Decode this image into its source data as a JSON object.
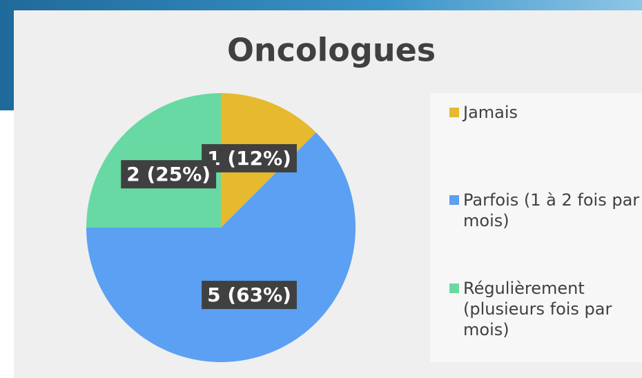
{
  "chart_data": {
    "type": "pie",
    "title": "Oncologues",
    "categories": [
      "Jamais",
      "Parfois (1 à 2 fois par mois)",
      "Régulièrement (plusieurs fois par mois)"
    ],
    "values": [
      1,
      5,
      2
    ],
    "value_labels": [
      "1 (12%)",
      "5 (63%)",
      "2 (25%)"
    ],
    "colors": [
      "#e6b92f",
      "#5ba0f2",
      "#68d9a2"
    ],
    "legend": "right"
  }
}
